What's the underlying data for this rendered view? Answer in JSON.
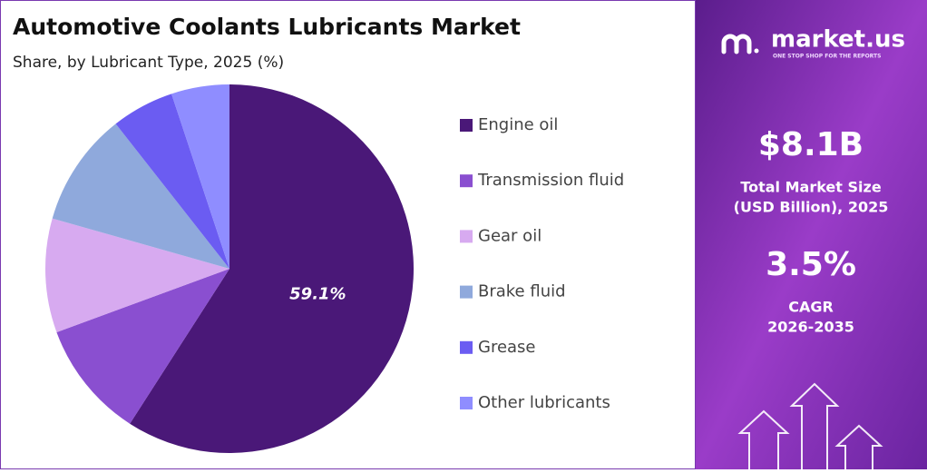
{
  "chart_data": {
    "type": "pie",
    "title": "Automotive Coolants Lubricants Market",
    "subtitle": "Share, by Lubricant Type, 2025 (%)",
    "categories": [
      "Engine oil",
      "Transmission fluid",
      "Gear oil",
      "Brake fluid",
      "Grease",
      "Other lubricants"
    ],
    "values": [
      59.1,
      10.3,
      10.0,
      10.0,
      5.5,
      5.1
    ],
    "value_labels": [
      "59.1%",
      null,
      null,
      null,
      null,
      null
    ],
    "colors": [
      "#4a1878",
      "#8a4fd0",
      "#d7aaf0",
      "#8fa9dc",
      "#6b5cf2",
      "#8f8dff"
    ],
    "legend": "right"
  },
  "panel": {
    "brand": "market.us",
    "tagline": "ONE STOP SHOP FOR THE REPORTS",
    "market_size": "$8.1B",
    "market_size_label": [
      "Total Market Size",
      "(USD Billion), 2025"
    ],
    "cagr": "3.5%",
    "cagr_label": [
      "CAGR",
      "2026-2035"
    ]
  }
}
